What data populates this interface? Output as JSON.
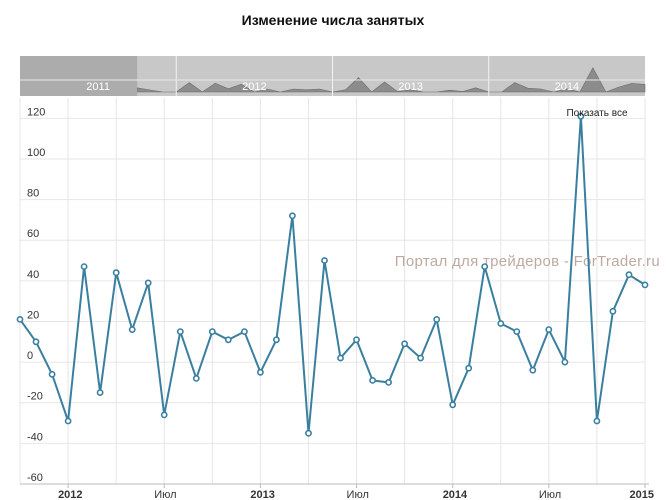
{
  "chart_data": {
    "type": "line",
    "title": "Изменение числа занятых",
    "xlabel": "",
    "ylabel": "",
    "ylim": [
      -60,
      130
    ],
    "yticks": [
      -60,
      -40,
      -20,
      0,
      20,
      40,
      60,
      80,
      100,
      120
    ],
    "grid": true,
    "x_range": [
      "2011-10",
      "2015-01"
    ],
    "xticks": [
      {
        "date": "2012-01",
        "label": "2012",
        "bold": true
      },
      {
        "date": "2012-07",
        "label": "Июл",
        "bold": false
      },
      {
        "date": "2013-01",
        "label": "2013",
        "bold": true
      },
      {
        "date": "2013-07",
        "label": "Июл",
        "bold": false
      },
      {
        "date": "2014-01",
        "label": "2014",
        "bold": true
      },
      {
        "date": "2014-07",
        "label": "Июл",
        "bold": false
      },
      {
        "date": "2015-01",
        "label": "2015",
        "bold": true
      }
    ],
    "series": [
      {
        "color": "#3a7fa0",
        "points": [
          [
            "2011-10",
            21
          ],
          [
            "2011-11",
            10
          ],
          [
            "2011-12",
            -6
          ],
          [
            "2012-01",
            -29
          ],
          [
            "2012-02",
            47
          ],
          [
            "2012-03",
            -15
          ],
          [
            "2012-04",
            44
          ],
          [
            "2012-05",
            16
          ],
          [
            "2012-06",
            39
          ],
          [
            "2012-07",
            -26
          ],
          [
            "2012-08",
            15
          ],
          [
            "2012-09",
            -8
          ],
          [
            "2012-10",
            15
          ],
          [
            "2012-11",
            11
          ],
          [
            "2012-12",
            15
          ],
          [
            "2013-01",
            -5
          ],
          [
            "2013-02",
            11
          ],
          [
            "2013-03",
            72
          ],
          [
            "2013-04",
            -35
          ],
          [
            "2013-05",
            50
          ],
          [
            "2013-06",
            2
          ],
          [
            "2013-07",
            11
          ],
          [
            "2013-08",
            -9
          ],
          [
            "2013-09",
            -10
          ],
          [
            "2013-10",
            9
          ],
          [
            "2013-11",
            2
          ],
          [
            "2013-12",
            21
          ],
          [
            "2014-01",
            -21
          ],
          [
            "2014-02",
            -3
          ],
          [
            "2014-03",
            47
          ],
          [
            "2014-04",
            19
          ],
          [
            "2014-05",
            15
          ],
          [
            "2014-06",
            -4
          ],
          [
            "2014-07",
            16
          ],
          [
            "2014-08",
            0
          ],
          [
            "2014-09",
            121
          ],
          [
            "2014-10",
            -29
          ],
          [
            "2014-11",
            25
          ],
          [
            "2014-12",
            43
          ],
          [
            "2015-01",
            38
          ]
        ]
      }
    ]
  },
  "navigator": {
    "years": [
      "2011",
      "2012",
      "2013",
      "2014"
    ],
    "selected_range": [
      "2011-10",
      "2015-01"
    ],
    "reset_label": "Показать все"
  },
  "watermark": "Портал для трейдеров - ForTrader.ru",
  "colors": {
    "line": "#3a7fa0",
    "navigator_bg": "#c8c8c8",
    "navigator_mask": "#a9a9a9",
    "navigator_area": "#7d7d7d",
    "grid": "#e6e6e6"
  }
}
